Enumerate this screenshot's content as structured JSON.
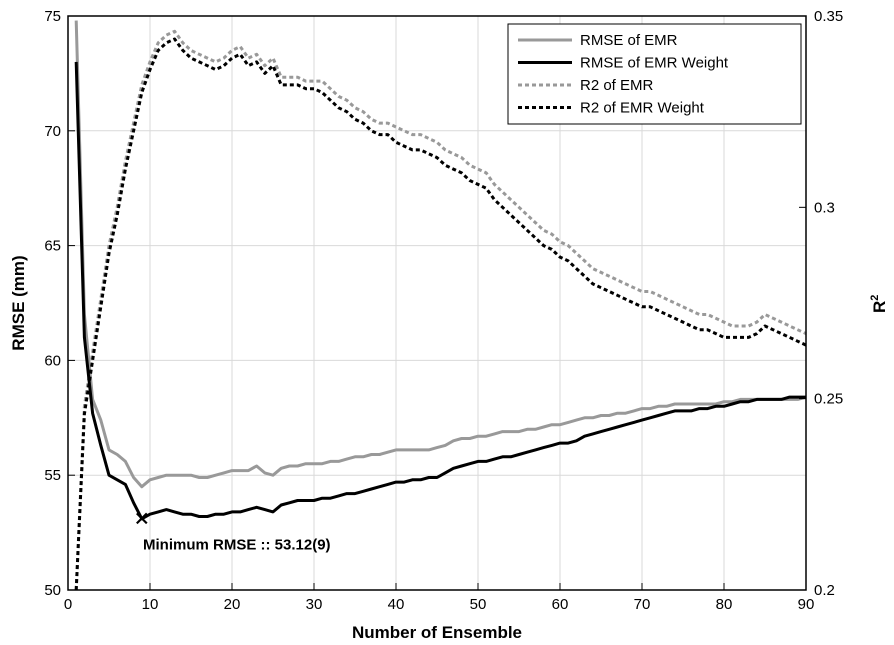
{
  "chart_data": {
    "type": "line",
    "xlabel": "Number of Ensemble",
    "ylabel_left": "RMSE (mm)",
    "ylabel_right": "R",
    "ylabel_right_sup": "2",
    "xlim": [
      0,
      90
    ],
    "ylim_left": [
      50,
      75
    ],
    "ylim_right": [
      0.2,
      0.35
    ],
    "x_ticks": [
      "0",
      "10",
      "20",
      "30",
      "40",
      "50",
      "60",
      "70",
      "80",
      "90"
    ],
    "y_ticks_left": [
      "50",
      "55",
      "60",
      "65",
      "70",
      "75"
    ],
    "y_ticks_right": [
      "0.2",
      "0.25",
      "0.3",
      "0.35"
    ],
    "grid": true,
    "legend_position": "top-right",
    "series": [
      {
        "name": "RMSE of EMR",
        "axis": "left",
        "color": "#999999",
        "dash": "solid",
        "x": [
          1,
          2,
          3,
          4,
          5,
          6,
          7,
          8,
          9,
          10,
          11,
          12,
          13,
          14,
          15,
          16,
          17,
          18,
          19,
          20,
          21,
          22,
          23,
          24,
          25,
          26,
          27,
          28,
          29,
          30,
          31,
          32,
          33,
          34,
          35,
          36,
          37,
          38,
          39,
          40,
          41,
          42,
          43,
          44,
          45,
          46,
          47,
          48,
          49,
          50,
          51,
          52,
          53,
          54,
          55,
          56,
          57,
          58,
          59,
          60,
          61,
          62,
          63,
          64,
          65,
          66,
          67,
          68,
          69,
          70,
          71,
          72,
          73,
          74,
          75,
          76,
          77,
          78,
          79,
          80,
          81,
          82,
          83,
          84,
          85,
          86,
          87,
          88,
          89,
          90
        ],
        "values": [
          74.8,
          62.0,
          58.3,
          57.4,
          56.1,
          55.9,
          55.6,
          54.9,
          54.5,
          54.8,
          54.9,
          55.0,
          55.0,
          55.0,
          55.0,
          54.9,
          54.9,
          55.0,
          55.1,
          55.2,
          55.2,
          55.2,
          55.4,
          55.1,
          55.0,
          55.3,
          55.4,
          55.4,
          55.5,
          55.5,
          55.5,
          55.6,
          55.6,
          55.7,
          55.8,
          55.8,
          55.9,
          55.9,
          56.0,
          56.1,
          56.1,
          56.1,
          56.1,
          56.1,
          56.2,
          56.3,
          56.5,
          56.6,
          56.6,
          56.7,
          56.7,
          56.8,
          56.9,
          56.9,
          56.9,
          57.0,
          57.0,
          57.1,
          57.2,
          57.2,
          57.3,
          57.4,
          57.5,
          57.5,
          57.6,
          57.6,
          57.7,
          57.7,
          57.8,
          57.9,
          57.9,
          58.0,
          58.0,
          58.1,
          58.1,
          58.1,
          58.1,
          58.1,
          58.1,
          58.2,
          58.2,
          58.3,
          58.3,
          58.3,
          58.3,
          58.3,
          58.3,
          58.3,
          58.3,
          58.4
        ]
      },
      {
        "name": "RMSE of EMR Weight",
        "axis": "left",
        "color": "#000000",
        "dash": "solid",
        "x": [
          1,
          2,
          3,
          4,
          5,
          6,
          7,
          8,
          9,
          10,
          11,
          12,
          13,
          14,
          15,
          16,
          17,
          18,
          19,
          20,
          21,
          22,
          23,
          24,
          25,
          26,
          27,
          28,
          29,
          30,
          31,
          32,
          33,
          34,
          35,
          36,
          37,
          38,
          39,
          40,
          41,
          42,
          43,
          44,
          45,
          46,
          47,
          48,
          49,
          50,
          51,
          52,
          53,
          54,
          55,
          56,
          57,
          58,
          59,
          60,
          61,
          62,
          63,
          64,
          65,
          66,
          67,
          68,
          69,
          70,
          71,
          72,
          73,
          74,
          75,
          76,
          77,
          78,
          79,
          80,
          81,
          82,
          83,
          84,
          85,
          86,
          87,
          88,
          89,
          90
        ],
        "values": [
          73.0,
          61.0,
          57.7,
          56.3,
          55.0,
          54.8,
          54.6,
          53.8,
          53.1,
          53.3,
          53.4,
          53.5,
          53.4,
          53.3,
          53.3,
          53.2,
          53.2,
          53.3,
          53.3,
          53.4,
          53.4,
          53.5,
          53.6,
          53.5,
          53.4,
          53.7,
          53.8,
          53.9,
          53.9,
          53.9,
          54.0,
          54.0,
          54.1,
          54.2,
          54.2,
          54.3,
          54.4,
          54.5,
          54.6,
          54.7,
          54.7,
          54.8,
          54.8,
          54.9,
          54.9,
          55.1,
          55.3,
          55.4,
          55.5,
          55.6,
          55.6,
          55.7,
          55.8,
          55.8,
          55.9,
          56.0,
          56.1,
          56.2,
          56.3,
          56.4,
          56.4,
          56.5,
          56.7,
          56.8,
          56.9,
          57.0,
          57.1,
          57.2,
          57.3,
          57.4,
          57.5,
          57.6,
          57.7,
          57.8,
          57.8,
          57.8,
          57.9,
          57.9,
          58.0,
          58.0,
          58.1,
          58.2,
          58.2,
          58.3,
          58.3,
          58.3,
          58.3,
          58.4,
          58.4,
          58.4
        ]
      },
      {
        "name": "R2 of EMR",
        "axis": "right",
        "color": "#999999",
        "dash": "dotted",
        "x": [
          1,
          2,
          3,
          4,
          5,
          6,
          7,
          8,
          9,
          10,
          11,
          12,
          13,
          14,
          15,
          16,
          17,
          18,
          19,
          20,
          21,
          22,
          23,
          24,
          25,
          26,
          27,
          28,
          29,
          30,
          31,
          32,
          33,
          34,
          35,
          36,
          37,
          38,
          39,
          40,
          41,
          42,
          43,
          44,
          45,
          46,
          47,
          48,
          49,
          50,
          51,
          52,
          53,
          54,
          55,
          56,
          57,
          58,
          59,
          60,
          61,
          62,
          63,
          64,
          65,
          66,
          67,
          68,
          69,
          70,
          71,
          72,
          73,
          74,
          75,
          76,
          77,
          78,
          79,
          80,
          81,
          82,
          83,
          84,
          85,
          86,
          87,
          88,
          89,
          90
        ],
        "values": [
          0.2,
          0.248,
          0.262,
          0.276,
          0.29,
          0.3,
          0.312,
          0.322,
          0.332,
          0.338,
          0.343,
          0.345,
          0.346,
          0.343,
          0.341,
          0.34,
          0.339,
          0.338,
          0.339,
          0.341,
          0.342,
          0.339,
          0.34,
          0.337,
          0.339,
          0.334,
          0.334,
          0.334,
          0.333,
          0.333,
          0.333,
          0.331,
          0.329,
          0.328,
          0.326,
          0.325,
          0.323,
          0.322,
          0.322,
          0.321,
          0.32,
          0.319,
          0.319,
          0.318,
          0.317,
          0.315,
          0.314,
          0.313,
          0.311,
          0.31,
          0.309,
          0.306,
          0.304,
          0.302,
          0.3,
          0.298,
          0.296,
          0.294,
          0.293,
          0.291,
          0.29,
          0.288,
          0.286,
          0.284,
          0.283,
          0.282,
          0.281,
          0.28,
          0.279,
          0.278,
          0.278,
          0.277,
          0.276,
          0.275,
          0.274,
          0.273,
          0.272,
          0.272,
          0.271,
          0.27,
          0.269,
          0.269,
          0.269,
          0.27,
          0.272,
          0.271,
          0.27,
          0.269,
          0.268,
          0.267
        ]
      },
      {
        "name": "R2 of EMR Weight",
        "axis": "right",
        "color": "#000000",
        "dash": "dotted",
        "x": [
          1,
          2,
          3,
          4,
          5,
          6,
          7,
          8,
          9,
          10,
          11,
          12,
          13,
          14,
          15,
          16,
          17,
          18,
          19,
          20,
          21,
          22,
          23,
          24,
          25,
          26,
          27,
          28,
          29,
          30,
          31,
          32,
          33,
          34,
          35,
          36,
          37,
          38,
          39,
          40,
          41,
          42,
          43,
          44,
          45,
          46,
          47,
          48,
          49,
          50,
          51,
          52,
          53,
          54,
          55,
          56,
          57,
          58,
          59,
          60,
          61,
          62,
          63,
          64,
          65,
          66,
          67,
          68,
          69,
          70,
          71,
          72,
          73,
          74,
          75,
          76,
          77,
          78,
          79,
          80,
          81,
          82,
          83,
          84,
          85,
          86,
          87,
          88,
          89,
          90
        ],
        "values": [
          0.2,
          0.246,
          0.26,
          0.274,
          0.288,
          0.298,
          0.31,
          0.32,
          0.33,
          0.336,
          0.341,
          0.343,
          0.344,
          0.341,
          0.339,
          0.338,
          0.337,
          0.336,
          0.337,
          0.339,
          0.34,
          0.337,
          0.338,
          0.335,
          0.337,
          0.332,
          0.332,
          0.332,
          0.331,
          0.331,
          0.33,
          0.328,
          0.326,
          0.325,
          0.323,
          0.322,
          0.32,
          0.319,
          0.319,
          0.317,
          0.316,
          0.315,
          0.315,
          0.314,
          0.313,
          0.311,
          0.31,
          0.309,
          0.307,
          0.306,
          0.305,
          0.302,
          0.3,
          0.298,
          0.296,
          0.294,
          0.292,
          0.29,
          0.289,
          0.287,
          0.286,
          0.284,
          0.282,
          0.28,
          0.279,
          0.278,
          0.277,
          0.276,
          0.275,
          0.274,
          0.274,
          0.273,
          0.272,
          0.271,
          0.27,
          0.269,
          0.268,
          0.268,
          0.267,
          0.266,
          0.266,
          0.266,
          0.266,
          0.267,
          0.269,
          0.268,
          0.267,
          0.266,
          0.265,
          0.264
        ]
      }
    ],
    "annotation": {
      "text": "Minimum RMSE :: 53.12(9)",
      "x": 9,
      "y": 53.12
    }
  }
}
